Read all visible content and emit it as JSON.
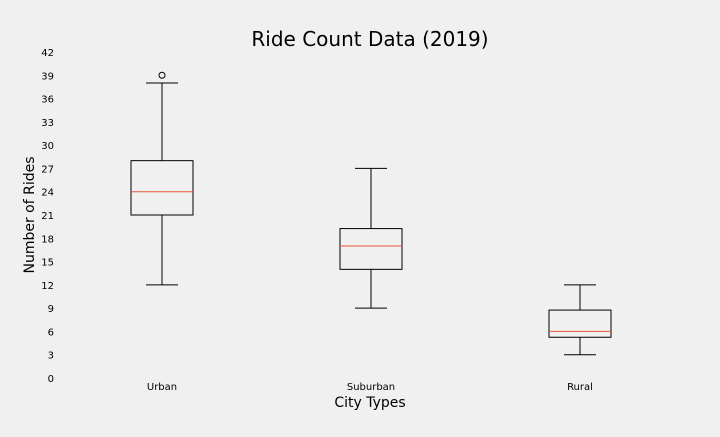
{
  "chart_data": {
    "type": "box",
    "title": "Ride Count Data (2019)",
    "xlabel": "City Types",
    "ylabel": "Number of Rides",
    "ylim": [
      0,
      42
    ],
    "yticks": [
      0,
      3,
      6,
      9,
      12,
      15,
      18,
      21,
      24,
      27,
      30,
      33,
      36,
      39,
      42
    ],
    "grid": false,
    "categories": [
      "Urban",
      "Suburban",
      "Rural"
    ],
    "boxes": [
      {
        "category": "Urban",
        "whisker_low": 12,
        "q1": 21,
        "median": 24,
        "q3": 28,
        "whisker_high": 38,
        "outliers": [
          39
        ]
      },
      {
        "category": "Suburban",
        "whisker_low": 9,
        "q1": 14,
        "median": 17,
        "q3": 19.25,
        "whisker_high": 27,
        "outliers": []
      },
      {
        "category": "Rural",
        "whisker_low": 3,
        "q1": 5.25,
        "median": 6,
        "q3": 8.75,
        "whisker_high": 12,
        "outliers": []
      }
    ],
    "colors": {
      "box": "#000000",
      "median": "#e5553a",
      "background": "#f0f0f0"
    }
  }
}
